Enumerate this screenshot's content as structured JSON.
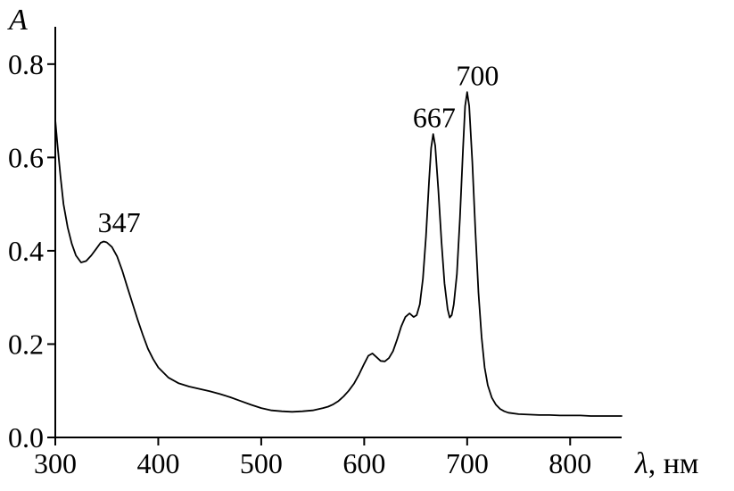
{
  "figure": {
    "background": "#ffffff",
    "line_color": "#000000",
    "axis_color": "#000000"
  },
  "chart_data": {
    "type": "line",
    "title": "",
    "xlabel": "λ, нм",
    "xlabel_symbol": "λ",
    "xlabel_unit": ", нм",
    "ylabel": "A",
    "xlim": [
      300,
      850
    ],
    "ylim": [
      0,
      0.88
    ],
    "grid": false,
    "legend": null,
    "x_ticks": [
      300,
      400,
      500,
      600,
      700,
      800
    ],
    "x_tick_labels": [
      "300",
      "400",
      "500",
      "600",
      "700",
      "800"
    ],
    "y_ticks": [
      0.0,
      0.2,
      0.4,
      0.6,
      0.8
    ],
    "y_tick_labels": [
      "0.0",
      "0.2",
      "0.4",
      "0.6",
      "0.8"
    ],
    "annotations": [
      {
        "x": 362,
        "y": 0.44,
        "label": "347"
      },
      {
        "x": 668,
        "y": 0.665,
        "label": "667"
      },
      {
        "x": 710,
        "y": 0.755,
        "label": "700"
      }
    ],
    "series": [
      {
        "name": "absorbance-spectrum",
        "x": [
          300,
          302,
          305,
          308,
          312,
          316,
          320,
          325,
          330,
          335,
          340,
          344,
          347,
          350,
          355,
          360,
          365,
          370,
          375,
          380,
          385,
          390,
          395,
          400,
          410,
          420,
          430,
          440,
          450,
          460,
          470,
          480,
          490,
          500,
          510,
          520,
          530,
          540,
          550,
          560,
          565,
          570,
          575,
          580,
          585,
          590,
          595,
          600,
          604,
          608,
          612,
          616,
          620,
          624,
          628,
          632,
          636,
          640,
          644,
          648,
          651,
          654,
          657,
          660,
          663,
          665,
          667,
          669,
          672,
          675,
          678,
          681,
          683,
          685,
          687,
          690,
          693,
          696,
          698,
          700,
          702,
          705,
          708,
          711,
          714,
          717,
          720,
          724,
          728,
          732,
          736,
          740,
          750,
          760,
          770,
          780,
          790,
          800,
          810,
          820,
          830,
          840,
          850
        ],
        "y": [
          0.68,
          0.63,
          0.56,
          0.5,
          0.45,
          0.415,
          0.39,
          0.375,
          0.378,
          0.39,
          0.405,
          0.417,
          0.42,
          0.418,
          0.408,
          0.388,
          0.358,
          0.322,
          0.287,
          0.252,
          0.22,
          0.19,
          0.168,
          0.15,
          0.128,
          0.116,
          0.109,
          0.104,
          0.099,
          0.093,
          0.086,
          0.078,
          0.07,
          0.063,
          0.058,
          0.056,
          0.055,
          0.056,
          0.058,
          0.063,
          0.066,
          0.071,
          0.078,
          0.088,
          0.1,
          0.115,
          0.135,
          0.158,
          0.175,
          0.18,
          0.172,
          0.164,
          0.163,
          0.17,
          0.185,
          0.21,
          0.238,
          0.258,
          0.266,
          0.258,
          0.262,
          0.285,
          0.34,
          0.43,
          0.55,
          0.62,
          0.65,
          0.625,
          0.53,
          0.42,
          0.33,
          0.275,
          0.257,
          0.262,
          0.285,
          0.35,
          0.47,
          0.62,
          0.71,
          0.74,
          0.71,
          0.59,
          0.44,
          0.31,
          0.215,
          0.15,
          0.112,
          0.085,
          0.07,
          0.061,
          0.056,
          0.053,
          0.05,
          0.049,
          0.048,
          0.048,
          0.047,
          0.047,
          0.047,
          0.046,
          0.046,
          0.046,
          0.046
        ]
      }
    ]
  }
}
